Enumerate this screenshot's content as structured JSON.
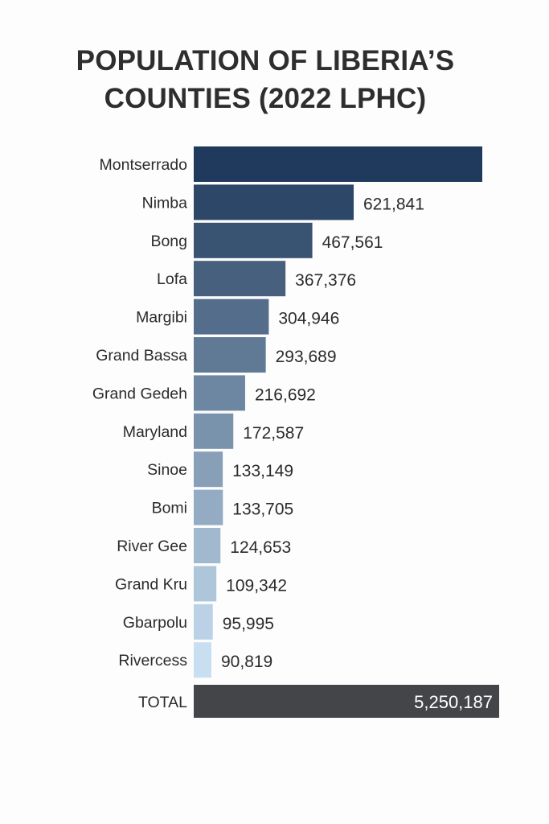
{
  "chart_data": {
    "type": "bar",
    "orientation": "horizontal",
    "title": "POPULATION OF LIBERIA’S COUNTIES (2022 LPHC)",
    "categories": [
      "Montserrado",
      "Nimba",
      "Bong",
      "Lofa",
      "Margibi",
      "Grand Bassa",
      "Grand Gedeh",
      "Maryland",
      "Sinoe",
      "Bomi",
      "River Gee",
      "Grand Kru",
      "Gbarpolu",
      "Rivercess"
    ],
    "values": [
      null,
      621841,
      467561,
      367376,
      304946,
      293689,
      216692,
      172587,
      133149,
      133705,
      124653,
      109342,
      95995,
      90819
    ],
    "data_labels": [
      "",
      "621,841",
      "467,561",
      "367,376",
      "304,946",
      "293,689",
      "216,692",
      "172,587",
      "133,149",
      "133,705",
      "124,653",
      "109,342",
      "95,995",
      "90,819"
    ],
    "total": {
      "label": "TOTAL",
      "value": 5250187,
      "data_label": "5,250,187"
    },
    "colors": {
      "darkest": "#1f3a5c",
      "lightest": "#c8dff1",
      "total": "#444548"
    },
    "grid": false,
    "legend": "none"
  }
}
